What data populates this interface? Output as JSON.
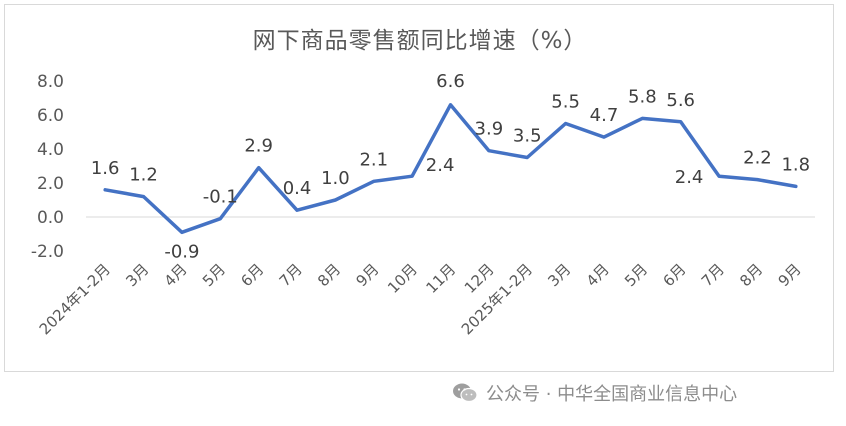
{
  "chart_data": {
    "type": "line",
    "title": "网下商品零售额同比增速（%）",
    "categories": [
      "2024年1-2月",
      "3月",
      "4月",
      "5月",
      "6月",
      "7月",
      "8月",
      "9月",
      "10月",
      "11月",
      "12月",
      "2025年1-2月",
      "3月",
      "4月",
      "5月",
      "6月",
      "7月",
      "8月",
      "9月"
    ],
    "series": [
      {
        "values": [
          1.6,
          1.2,
          -0.9,
          -0.1,
          2.9,
          0.4,
          1.0,
          2.1,
          2.4,
          6.6,
          3.9,
          3.5,
          5.5,
          4.7,
          5.8,
          5.6,
          2.4,
          2.2,
          1.8
        ]
      }
    ],
    "data_labels": [
      "1.6",
      "1.2",
      "-0.9",
      "-0.1",
      "2.9",
      "0.4",
      "1.0",
      "2.1",
      "2.4",
      "6.6",
      "3.9",
      "3.5",
      "5.5",
      "4.7",
      "5.8",
      "5.6",
      "2.4",
      "2.2",
      "1.8"
    ],
    "y_ticks": [
      "-2.0",
      "0.0",
      "2.0",
      "4.0",
      "6.0",
      "8.0"
    ],
    "ylim": [
      -2,
      8
    ],
    "grid": false,
    "line_color": "#4472c4"
  },
  "watermark": {
    "icon": "wechat-icon",
    "text": "公众号 · 中华全国商业信息中心"
  }
}
